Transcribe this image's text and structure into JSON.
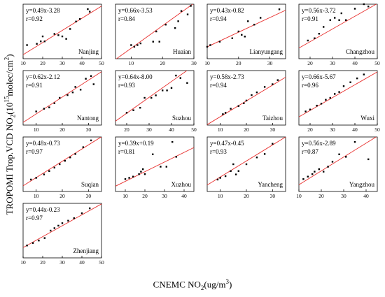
{
  "figure": {
    "ylabel": {
      "prefix": "TROPOMI Trop.VCD NO",
      "sub": "2",
      "mid": "(10",
      "sup": "15",
      "suffix": "molec/cm",
      "sup2": "2",
      "end": ")"
    },
    "xlabel": {
      "prefix": "CNEMC NO",
      "sub": "2",
      "mid": "(ug/m",
      "sup": "3",
      "end": ")"
    }
  },
  "chart_data": [
    {
      "type": "scatter",
      "title": "Nanjing",
      "equation": "y=0.49x-3.28",
      "r": "r=0.92",
      "xlim": [
        10,
        50
      ],
      "ylim": [
        0,
        22
      ],
      "xticks": [
        10,
        20,
        30,
        40,
        50
      ],
      "yticks": [],
      "trend": {
        "slope": 0.49,
        "intercept": -3.28
      },
      "points": [
        [
          12,
          5.5
        ],
        [
          17,
          6
        ],
        [
          19,
          7
        ],
        [
          20,
          9
        ],
        [
          21,
          7
        ],
        [
          26,
          10
        ],
        [
          28,
          9.5
        ],
        [
          30,
          9
        ],
        [
          32,
          8
        ],
        [
          34,
          12
        ],
        [
          37,
          15
        ],
        [
          39,
          16
        ],
        [
          43,
          20
        ],
        [
          44,
          19
        ]
      ]
    },
    {
      "type": "scatter",
      "title": "Huaian",
      "equation": "y=0.66x-3.53",
      "r": "r=0.84",
      "xlim": [
        5,
        30
      ],
      "ylim": [
        0,
        16
      ],
      "xticks": [
        10,
        20,
        30
      ],
      "yticks": [],
      "trend": {
        "slope": 0.66,
        "intercept": -3.53
      },
      "points": [
        [
          10,
          4
        ],
        [
          11,
          3.5
        ],
        [
          12,
          4
        ],
        [
          13,
          4.5
        ],
        [
          17,
          5
        ],
        [
          18,
          8
        ],
        [
          19,
          5
        ],
        [
          21,
          10
        ],
        [
          24,
          9
        ],
        [
          25,
          11
        ],
        [
          26,
          14
        ],
        [
          28,
          13
        ],
        [
          29,
          15.5
        ]
      ]
    },
    {
      "type": "scatter",
      "title": "Lianyungang",
      "equation": "y=0.43x-0.82",
      "r": "r=0.94",
      "xlim": [
        10,
        35
      ],
      "ylim": [
        0,
        16
      ],
      "xticks": [
        10,
        20,
        30
      ],
      "yticks": [],
      "trend": {
        "slope": 0.43,
        "intercept": -0.82
      },
      "points": [
        [
          10,
          3.5
        ],
        [
          11,
          4
        ],
        [
          14,
          5
        ],
        [
          18,
          6
        ],
        [
          20,
          8
        ],
        [
          21,
          7
        ],
        [
          22,
          6.5
        ],
        [
          23,
          11
        ],
        [
          25,
          10
        ],
        [
          27,
          12
        ],
        [
          33,
          14.5
        ]
      ]
    },
    {
      "type": "scatter",
      "title": "Changzhou",
      "equation": "y=0.56x-3.72",
      "r": "r=0.91",
      "xlim": [
        15,
        50
      ],
      "ylim": [
        0,
        24
      ],
      "xticks": [
        20,
        30,
        40,
        50
      ],
      "yticks": [],
      "trend": {
        "slope": 0.56,
        "intercept": -3.72
      },
      "points": [
        [
          19,
          8
        ],
        [
          22,
          9
        ],
        [
          24,
          11
        ],
        [
          26,
          14
        ],
        [
          29,
          17
        ],
        [
          31,
          18
        ],
        [
          33,
          17
        ],
        [
          34,
          20
        ],
        [
          36,
          17
        ],
        [
          40,
          22
        ],
        [
          44,
          24
        ],
        [
          46,
          23
        ]
      ]
    },
    {
      "type": "scatter",
      "title": "Nantong",
      "equation": "y=0.62x-2.12",
      "r": "r=0.91",
      "xlim": [
        5,
        35
      ],
      "ylim": [
        0,
        20
      ],
      "xticks": [
        10,
        20,
        30
      ],
      "yticks": [],
      "trend": {
        "slope": 0.62,
        "intercept": -2.12
      },
      "points": [
        [
          10,
          5
        ],
        [
          13,
          6
        ],
        [
          15,
          6.5
        ],
        [
          17,
          8
        ],
        [
          19,
          10
        ],
        [
          22,
          11
        ],
        [
          24,
          12
        ],
        [
          25,
          14
        ],
        [
          27,
          13
        ],
        [
          29,
          17
        ],
        [
          31,
          18
        ],
        [
          32,
          15
        ]
      ]
    },
    {
      "type": "scatter",
      "title": "Suzhou",
      "equation": "y=0.64x-8.00",
      "r": "r=0.93",
      "xlim": [
        15,
        50
      ],
      "ylim": [
        0,
        22
      ],
      "xticks": [
        20,
        30,
        40,
        50
      ],
      "yticks": [],
      "trend": {
        "slope": 0.64,
        "intercept": -8.0
      },
      "points": [
        [
          20,
          5
        ],
        [
          23,
          6
        ],
        [
          26,
          7
        ],
        [
          28,
          11
        ],
        [
          31,
          11
        ],
        [
          33,
          12
        ],
        [
          36,
          14
        ],
        [
          38,
          14
        ],
        [
          40,
          15
        ],
        [
          42,
          20
        ],
        [
          44,
          19
        ],
        [
          47,
          17
        ]
      ]
    },
    {
      "type": "scatter",
      "title": "Taizhou",
      "equation": "y=0.58x-2.73",
      "r": "r=0.94",
      "xlim": [
        5,
        35
      ],
      "ylim": [
        0,
        20
      ],
      "xticks": [
        10,
        20,
        30
      ],
      "yticks": [],
      "trend": {
        "slope": 0.58,
        "intercept": -2.73
      },
      "points": [
        [
          11,
          4
        ],
        [
          12,
          4.5
        ],
        [
          14,
          6
        ],
        [
          17,
          7
        ],
        [
          19,
          8
        ],
        [
          20,
          9
        ],
        [
          22,
          11
        ],
        [
          24,
          12
        ],
        [
          27,
          14
        ],
        [
          30,
          15
        ],
        [
          32,
          16.5
        ]
      ]
    },
    {
      "type": "scatter",
      "title": "Wuxi",
      "equation": "y=0.66x-5.67",
      "r": "r=0.96",
      "xlim": [
        15,
        50
      ],
      "ylim": [
        0,
        28
      ],
      "xticks": [
        20,
        30,
        40,
        50
      ],
      "yticks": [],
      "trend": {
        "slope": 0.66,
        "intercept": -5.67
      },
      "points": [
        [
          18,
          7
        ],
        [
          20,
          8
        ],
        [
          23,
          10
        ],
        [
          25,
          11
        ],
        [
          27,
          13
        ],
        [
          29,
          14
        ],
        [
          31,
          16
        ],
        [
          33,
          17
        ],
        [
          35,
          20
        ],
        [
          38,
          22
        ],
        [
          41,
          24
        ],
        [
          44,
          26
        ]
      ]
    },
    {
      "type": "scatter",
      "title": "Suqian",
      "equation": "y=0.48x-0.73",
      "r": "r=0.97",
      "xlim": [
        5,
        35
      ],
      "ylim": [
        0,
        16
      ],
      "xticks": [
        10,
        20,
        30
      ],
      "yticks": [],
      "trend": {
        "slope": 0.48,
        "intercept": -0.73
      },
      "points": [
        [
          8,
          3.5
        ],
        [
          10,
          4
        ],
        [
          13,
          5
        ],
        [
          15,
          6
        ],
        [
          17,
          7
        ],
        [
          19,
          8
        ],
        [
          21,
          9
        ],
        [
          23,
          10
        ],
        [
          25,
          11
        ],
        [
          28,
          13
        ],
        [
          31,
          15
        ]
      ]
    },
    {
      "type": "scatter",
      "title": "Xuzhou",
      "equation": "y=0.39x+0.19",
      "r": "r=0.81",
      "xlim": [
        5,
        45
      ],
      "ylim": [
        0,
        22
      ],
      "xticks": [
        10,
        20,
        30,
        40
      ],
      "yticks": [],
      "trend": {
        "slope": 0.39,
        "intercept": 0.19
      },
      "points": [
        [
          10,
          5
        ],
        [
          12,
          5.5
        ],
        [
          14,
          6
        ],
        [
          17,
          7
        ],
        [
          18,
          8
        ],
        [
          19,
          9
        ],
        [
          20,
          7
        ],
        [
          24,
          15
        ],
        [
          28,
          10
        ],
        [
          31,
          10
        ],
        [
          34,
          20
        ],
        [
          36,
          14
        ]
      ]
    },
    {
      "type": "scatter",
      "title": "Yancheng",
      "equation": "y=0.47x-0.45",
      "r": "r=0.93",
      "xlim": [
        5,
        35
      ],
      "ylim": [
        0,
        16
      ],
      "xticks": [
        10,
        20,
        30
      ],
      "yticks": [],
      "trend": {
        "slope": 0.47,
        "intercept": -0.45
      },
      "points": [
        [
          9,
          3.5
        ],
        [
          10,
          4
        ],
        [
          12,
          4.5
        ],
        [
          14,
          6
        ],
        [
          15,
          8
        ],
        [
          16,
          5
        ],
        [
          17,
          6
        ],
        [
          20,
          8
        ],
        [
          24,
          10
        ],
        [
          27,
          11
        ],
        [
          30,
          14
        ]
      ]
    },
    {
      "type": "scatter",
      "title": "Yangzhou",
      "equation": "y=0.56x-2.89",
      "r": "r=0.87",
      "xlim": [
        10,
        45
      ],
      "ylim": [
        0,
        22
      ],
      "xticks": [
        10,
        20,
        30,
        40
      ],
      "yticks": [],
      "trend": {
        "slope": 0.56,
        "intercept": -2.89
      },
      "points": [
        [
          12,
          5
        ],
        [
          14,
          6
        ],
        [
          16,
          7
        ],
        [
          17,
          8
        ],
        [
          19,
          9
        ],
        [
          21,
          8
        ],
        [
          23,
          10
        ],
        [
          25,
          12
        ],
        [
          28,
          15
        ],
        [
          31,
          14
        ],
        [
          35,
          20
        ],
        [
          41,
          13
        ]
      ]
    },
    {
      "type": "scatter",
      "title": "Zhenjiang",
      "equation": "y=0.44x-0.23",
      "r": "r=0.97",
      "xlim": [
        10,
        50
      ],
      "ylim": [
        0,
        22
      ],
      "xticks": [
        10,
        20,
        30,
        40,
        50
      ],
      "yticks": [],
      "trend": {
        "slope": 0.44,
        "intercept": -0.23
      },
      "points": [
        [
          12,
          5
        ],
        [
          15,
          6
        ],
        [
          18,
          7
        ],
        [
          21,
          8
        ],
        [
          24,
          11
        ],
        [
          26,
          12
        ],
        [
          28,
          13
        ],
        [
          30,
          14
        ],
        [
          33,
          15
        ],
        [
          36,
          16
        ],
        [
          40,
          18
        ],
        [
          44,
          20
        ]
      ]
    }
  ]
}
